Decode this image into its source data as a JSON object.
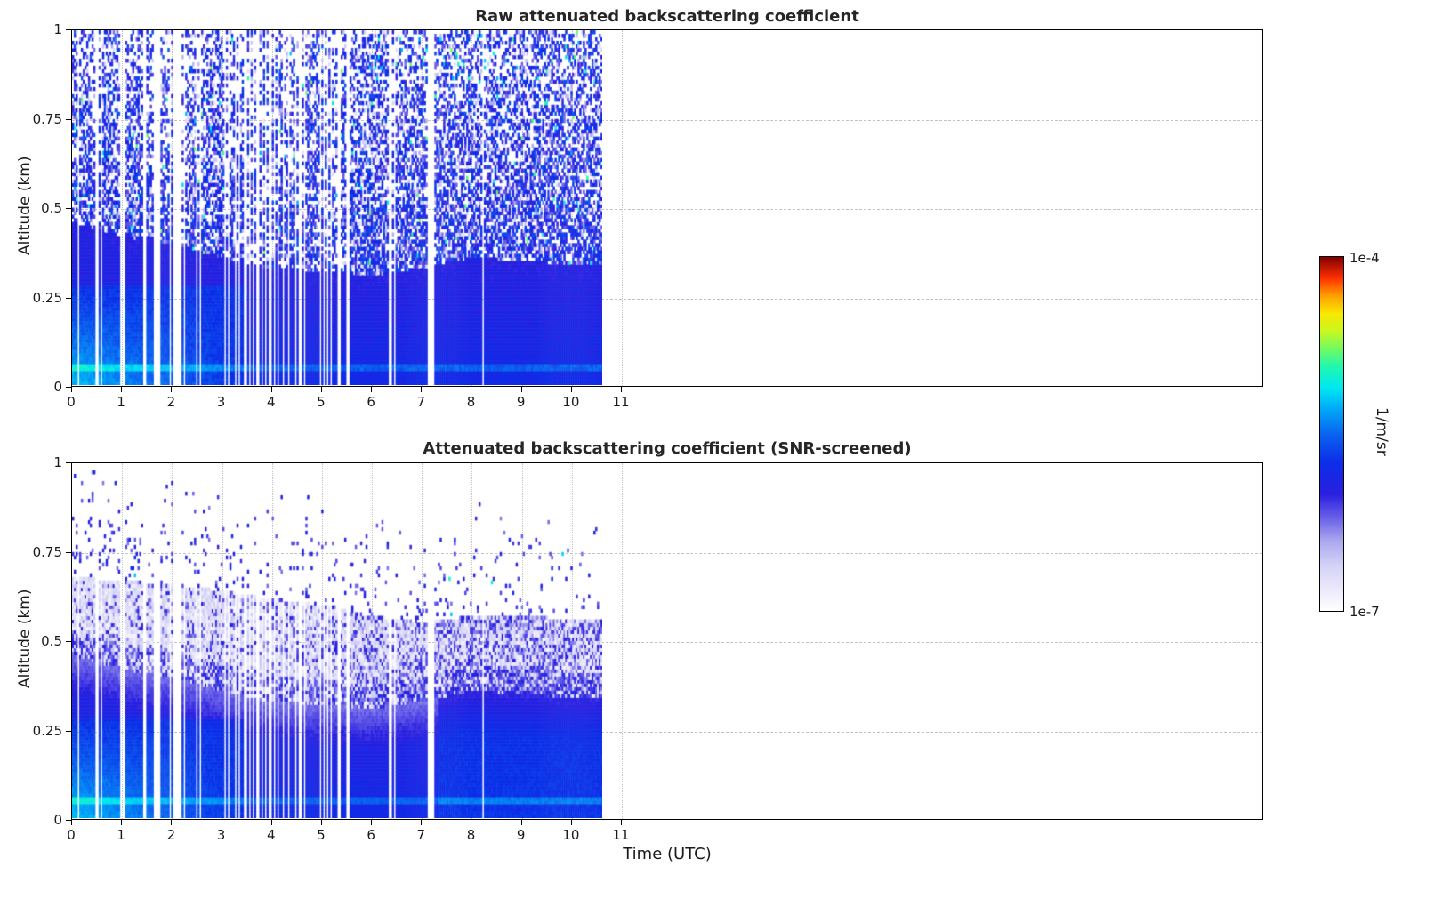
{
  "figure": {
    "background": "#ffffff"
  },
  "colors": {
    "axis": "#000000",
    "grid": "#c4c4c4",
    "text": "#1a1a1a",
    "title": "#262626"
  },
  "colorbar": {
    "top_label": "1e-4",
    "bottom_label": "1e-7",
    "unit": "1/m/sr"
  },
  "chart_data": {
    "type": "heatmap",
    "xlabel": "Time (UTC)",
    "x_axis_range": [
      0,
      23.85
    ],
    "x_data_range": [
      0,
      10.6
    ],
    "y_range": [
      0,
      1
    ],
    "x_ticks": {
      "values": [
        0,
        1,
        2,
        3,
        4,
        5,
        6,
        7,
        8,
        9,
        10,
        11
      ],
      "labels": [
        "0",
        "1",
        "2",
        "3",
        "4",
        "5",
        "6",
        "7",
        "8",
        "9",
        "10",
        "11"
      ]
    },
    "y_ticks": {
      "values": [
        0,
        0.25,
        0.5,
        0.75,
        1
      ],
      "labels": [
        "0",
        "0.25",
        "0.5",
        "0.75",
        "1"
      ]
    },
    "value_scale": {
      "min": 1e-07,
      "max": 0.0001,
      "scale": "log",
      "units": "1/m/sr",
      "colorbar_tick_labels": [
        "1e-7",
        "1e-4"
      ]
    },
    "nx": 300,
    "ny": 100,
    "gaps": [
      [
        0.13,
        0.05
      ],
      [
        0.5,
        0.05
      ],
      [
        0.57,
        0.04
      ],
      [
        0.99,
        0.05
      ],
      [
        1.05,
        0.04
      ],
      [
        1.45,
        0.04
      ],
      [
        1.63,
        0.04
      ],
      [
        1.7,
        0.05
      ],
      [
        1.76,
        0.04
      ],
      [
        1.95,
        0.04
      ],
      [
        2.05,
        0.05
      ],
      [
        2.12,
        0.04
      ],
      [
        2.18,
        0.05
      ],
      [
        2.25,
        0.04
      ],
      [
        2.5,
        0.05
      ],
      [
        2.57,
        0.04
      ],
      [
        3.06,
        0.05
      ],
      [
        3.13,
        0.04
      ],
      [
        3.26,
        0.05
      ],
      [
        3.35,
        0.04
      ],
      [
        3.46,
        0.05
      ],
      [
        3.56,
        0.04
      ],
      [
        3.63,
        0.05
      ],
      [
        3.71,
        0.04
      ],
      [
        3.79,
        0.05
      ],
      [
        3.87,
        0.04
      ],
      [
        3.96,
        0.05
      ],
      [
        4.04,
        0.04
      ],
      [
        4.12,
        0.05
      ],
      [
        4.23,
        0.04
      ],
      [
        4.33,
        0.05
      ],
      [
        4.46,
        0.04
      ],
      [
        4.56,
        0.05
      ],
      [
        4.66,
        0.04
      ],
      [
        4.96,
        0.05
      ],
      [
        5.03,
        0.04
      ],
      [
        5.1,
        0.05
      ],
      [
        5.17,
        0.04
      ],
      [
        5.33,
        0.05
      ],
      [
        5.51,
        0.04
      ],
      [
        6.36,
        0.05
      ],
      [
        6.44,
        0.04
      ],
      [
        7.17,
        0.17
      ],
      [
        8.22,
        0.05
      ]
    ],
    "colormap": {
      "stops": [
        [
          0.0,
          "#ffffff"
        ],
        [
          0.06,
          "#ece9fb"
        ],
        [
          0.13,
          "#d3d1f7"
        ],
        [
          0.2,
          "#a9a6ee"
        ],
        [
          0.26,
          "#6b63e8"
        ],
        [
          0.33,
          "#2a1fe0"
        ],
        [
          0.42,
          "#0b2ee8"
        ],
        [
          0.5,
          "#0a64f0"
        ],
        [
          0.57,
          "#00a8f8"
        ],
        [
          0.63,
          "#00e8f0"
        ],
        [
          0.69,
          "#20f8b0"
        ],
        [
          0.74,
          "#70fa60"
        ],
        [
          0.79,
          "#c8f820"
        ],
        [
          0.84,
          "#f8e800"
        ],
        [
          0.89,
          "#ffa000"
        ],
        [
          0.94,
          "#ff3000"
        ],
        [
          1.0,
          "#7f0000"
        ]
      ]
    },
    "panels": [
      {
        "title": "Raw attenuated backscattering coefficient",
        "ylabel": "Altitude (km)",
        "seed": 20477,
        "layer_top_km_by_hour": [
          0.46,
          0.42,
          0.4,
          0.36,
          0.33,
          0.32,
          0.31,
          0.33,
          0.36,
          0.35,
          0.34,
          0.34
        ],
        "cyan_patch": {
          "t_end": 3.5,
          "z_top": 0.28
        },
        "surface_band_km": [
          0.035,
          0.065
        ],
        "description": "Dense blue boundary layer below ~0.3-0.46 km with a cyan high-backscatter patch near the surface before 03 UTC; uncorrelated blue/white noise speckle fills altitudes above the layer up to 1 km; data end at ~10.6 UTC; white vertical stripes are missing profiles."
      },
      {
        "title": "Attenuated backscattering coefficient (SNR-screened)",
        "ylabel": "Altitude (km)",
        "seed": 91331,
        "layer_top_km_by_hour": [
          0.46,
          0.42,
          0.4,
          0.36,
          0.33,
          0.32,
          0.31,
          0.33,
          0.36,
          0.35,
          0.34,
          0.34
        ],
        "screen_top_km_by_hour": [
          0.68,
          0.67,
          0.66,
          0.64,
          0.62,
          0.6,
          0.57,
          0.55,
          0.57,
          0.57,
          0.56,
          0.56
        ],
        "bright_after_hour": 7.3,
        "cyan_patch": {
          "t_end": 3.5,
          "z_top": 0.28
        },
        "surface_band_km": [
          0.035,
          0.065
        ],
        "description": "Same field after SNR screening: values above ~0.55-0.7 km removed (white) except sparse blue speckles; faint near-threshold lavender band between the aerosol layer top and the screening height; brighter uniform blue layer after ~07:20 UTC."
      }
    ]
  }
}
